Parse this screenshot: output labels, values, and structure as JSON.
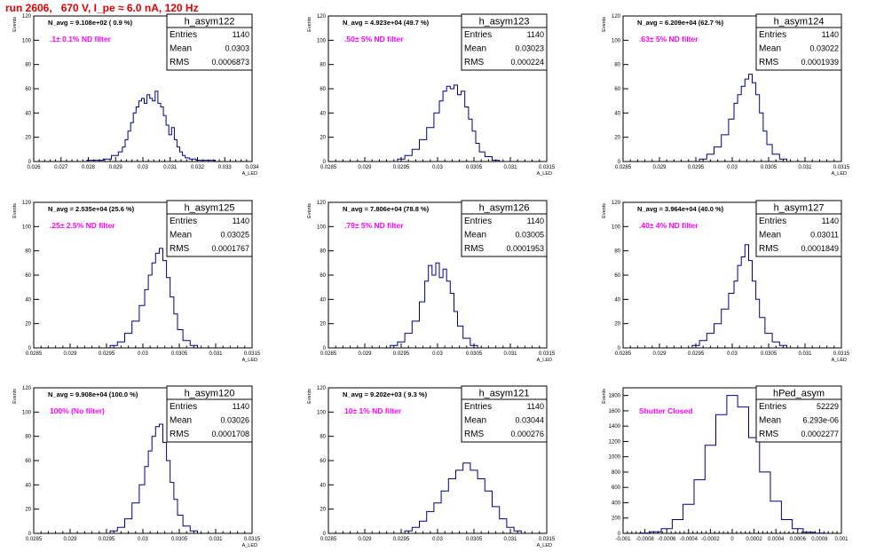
{
  "page": {
    "title": "run 2606,   670 V, I_pe ≈ 6.0 nA, 120 Hz"
  },
  "colors": {
    "histogram": "#00007f",
    "annotation": "#ff00ff",
    "title": "#e00000",
    "axis": "#000000"
  },
  "chart_data": [
    {
      "type": "histogram",
      "name": "h_asym122",
      "ylabel": "Events",
      "xlabel": "A_LED",
      "nav_label": "N_avg = 9.108e+02 ( 0.9 %)",
      "filter_label": ".1± 0.1% ND filter",
      "stats": {
        "entries": "1140",
        "mean": "0.0303",
        "rms": "0.0006873"
      },
      "xlim": [
        0.026,
        0.034
      ],
      "xticks": [
        "0.026",
        "0.027",
        "0.028",
        "0.029",
        "0.03",
        "0.031",
        "0.032",
        "0.033",
        "0.034"
      ],
      "ylim": [
        0,
        120
      ],
      "yticks": [
        "0",
        "20",
        "40",
        "60",
        "80",
        "100",
        "120"
      ],
      "bins_x": [
        0.0281,
        0.0284,
        0.0287,
        0.029,
        0.0292,
        0.0293,
        0.0294,
        0.0295,
        0.0296,
        0.0297,
        0.0298,
        0.0299,
        0.03,
        0.0301,
        0.0302,
        0.0303,
        0.0304,
        0.0305,
        0.0306,
        0.0307,
        0.0308,
        0.0309,
        0.031,
        0.0311,
        0.0312,
        0.0313,
        0.0314,
        0.0315,
        0.0316,
        0.0318,
        0.0321,
        0.0325
      ],
      "bins_y": [
        1,
        1,
        2,
        5,
        8,
        12,
        18,
        25,
        32,
        40,
        45,
        50,
        52,
        48,
        55,
        52,
        50,
        58,
        48,
        45,
        38,
        30,
        22,
        28,
        18,
        12,
        8,
        5,
        3,
        2,
        1,
        1
      ]
    },
    {
      "type": "histogram",
      "name": "h_asym123",
      "ylabel": "Events",
      "xlabel": "A_LED",
      "nav_label": "N_avg = 4.923e+04 (49.7 %)",
      "filter_label": ".50± 5% ND filter",
      "stats": {
        "entries": "1140",
        "mean": "0.03023",
        "rms": "0.000224"
      },
      "xlim": [
        0.0285,
        0.0315
      ],
      "xticks": [
        "0.0285",
        "0.029",
        "0.0295",
        "0.03",
        "0.0305",
        "0.031",
        "0.0315"
      ],
      "ylim": [
        0,
        120
      ],
      "yticks": [
        "0",
        "20",
        "40",
        "60",
        "80",
        "100",
        "120"
      ],
      "bins_x": [
        0.0295,
        0.0296,
        0.0297,
        0.0298,
        0.0299,
        0.03,
        0.03005,
        0.0301,
        0.03015,
        0.0302,
        0.03025,
        0.0303,
        0.03035,
        0.0304,
        0.03045,
        0.0305,
        0.03055,
        0.0306,
        0.0307,
        0.0308
      ],
      "bins_y": [
        2,
        5,
        10,
        18,
        28,
        40,
        50,
        58,
        62,
        60,
        63,
        55,
        58,
        45,
        35,
        25,
        15,
        8,
        4,
        1
      ]
    },
    {
      "type": "histogram",
      "name": "h_asym124",
      "ylabel": "Events",
      "xlabel": "A_LED",
      "nav_label": "N_avg = 6.209e+04 (62.7 %)",
      "filter_label": ".63± 5% ND filter",
      "stats": {
        "entries": "1140",
        "mean": "0.03022",
        "rms": "0.0001939"
      },
      "xlim": [
        0.0285,
        0.0315
      ],
      "xticks": [
        "0.0285",
        "0.029",
        "0.0295",
        "0.03",
        "0.0305",
        "0.031",
        "0.0315"
      ],
      "ylim": [
        0,
        120
      ],
      "yticks": [
        "0",
        "20",
        "40",
        "60",
        "80",
        "100",
        "120"
      ],
      "bins_x": [
        0.0296,
        0.0297,
        0.0298,
        0.0299,
        0.03,
        0.03005,
        0.0301,
        0.03015,
        0.0302,
        0.03025,
        0.0303,
        0.03035,
        0.0304,
        0.03045,
        0.0305,
        0.0306,
        0.0307
      ],
      "bins_y": [
        2,
        6,
        12,
        22,
        35,
        48,
        55,
        62,
        68,
        72,
        65,
        55,
        40,
        25,
        14,
        6,
        2
      ]
    },
    {
      "type": "histogram",
      "name": "h_asym125",
      "ylabel": "Events",
      "xlabel": "A_LED",
      "nav_label": "N_avg = 2.535e+04 (25.6 %)",
      "filter_label": ".25± 2.5% ND filter",
      "stats": {
        "entries": "1140",
        "mean": "0.03025",
        "rms": "0.0001767"
      },
      "xlim": [
        0.0285,
        0.0315
      ],
      "xticks": [
        "0.0285",
        "0.029",
        "0.0295",
        "0.03",
        "0.0305",
        "0.031",
        "0.0315"
      ],
      "ylim": [
        0,
        120
      ],
      "yticks": [
        "0",
        "20",
        "40",
        "60",
        "80",
        "100",
        "120"
      ],
      "bins_x": [
        0.0296,
        0.0297,
        0.0298,
        0.0299,
        0.03,
        0.03005,
        0.0301,
        0.03015,
        0.0302,
        0.03025,
        0.0303,
        0.03035,
        0.0304,
        0.03045,
        0.0305,
        0.0306,
        0.0307
      ],
      "bins_y": [
        2,
        5,
        12,
        22,
        35,
        48,
        60,
        70,
        78,
        82,
        72,
        58,
        42,
        28,
        15,
        6,
        2
      ]
    },
    {
      "type": "histogram",
      "name": "h_asym126",
      "ylabel": "Events",
      "xlabel": "A_LED",
      "nav_label": "N_avg = 7.806e+04 (78.8 %)",
      "filter_label": ".79± 5% ND filter",
      "stats": {
        "entries": "1140",
        "mean": "0.03005",
        "rms": "0.0001953"
      },
      "xlim": [
        0.0285,
        0.0315
      ],
      "xticks": [
        "0.0285",
        "0.029",
        "0.0295",
        "0.03",
        "0.0305",
        "0.031",
        "0.0315"
      ],
      "ylim": [
        0,
        120
      ],
      "yticks": [
        "0",
        "20",
        "40",
        "60",
        "80",
        "100",
        "120"
      ],
      "bins_x": [
        0.0294,
        0.0295,
        0.0296,
        0.0297,
        0.0298,
        0.02985,
        0.0299,
        0.02995,
        0.03,
        0.03005,
        0.0301,
        0.03015,
        0.0302,
        0.03025,
        0.0303,
        0.0304,
        0.0305
      ],
      "bins_y": [
        2,
        5,
        12,
        22,
        38,
        55,
        68,
        60,
        70,
        58,
        65,
        55,
        45,
        30,
        18,
        8,
        2
      ]
    },
    {
      "type": "histogram",
      "name": "h_asym127",
      "ylabel": "Events",
      "xlabel": "A_LED",
      "nav_label": "N_avg = 3.964e+04 (40.0 %)",
      "filter_label": ".40± 4% ND filter",
      "stats": {
        "entries": "1140",
        "mean": "0.03011",
        "rms": "0.0001849"
      },
      "xlim": [
        0.0285,
        0.0315
      ],
      "xticks": [
        "0.0285",
        "0.029",
        "0.0295",
        "0.03",
        "0.0305",
        "0.031",
        "0.0315"
      ],
      "ylim": [
        0,
        120
      ],
      "yticks": [
        "0",
        "20",
        "40",
        "60",
        "80",
        "100",
        "120"
      ],
      "bins_x": [
        0.0295,
        0.0296,
        0.0297,
        0.0298,
        0.0299,
        0.03,
        0.03005,
        0.0301,
        0.03015,
        0.0302,
        0.03025,
        0.0303,
        0.03035,
        0.0304,
        0.0305,
        0.0306,
        0.0307
      ],
      "bins_y": [
        2,
        6,
        12,
        20,
        32,
        45,
        55,
        68,
        75,
        85,
        72,
        55,
        40,
        25,
        12,
        5,
        2
      ]
    },
    {
      "type": "histogram",
      "name": "h_asym120",
      "ylabel": "Events",
      "xlabel": "A_LED",
      "nav_label": "N_avg = 9.908e+04 (100.0 %)",
      "filter_label": "100% (No filter)",
      "stats": {
        "entries": "1140",
        "mean": "0.03026",
        "rms": "0.0001708"
      },
      "xlim": [
        0.0285,
        0.0315
      ],
      "xticks": [
        "0.0285",
        "0.029",
        "0.0295",
        "0.03",
        "0.0305",
        "0.031",
        "0.0315"
      ],
      "ylim": [
        0,
        120
      ],
      "yticks": [
        "0",
        "20",
        "40",
        "60",
        "80",
        "100",
        "120"
      ],
      "bins_x": [
        0.0296,
        0.0297,
        0.0298,
        0.0299,
        0.03,
        0.03005,
        0.0301,
        0.03015,
        0.0302,
        0.03025,
        0.0303,
        0.03035,
        0.0304,
        0.03045,
        0.0305,
        0.0306,
        0.0307
      ],
      "bins_y": [
        2,
        5,
        12,
        25,
        40,
        55,
        68,
        80,
        88,
        90,
        75,
        60,
        42,
        28,
        15,
        6,
        2
      ]
    },
    {
      "type": "histogram",
      "name": "h_asym121",
      "ylabel": "Events",
      "xlabel": "A_LED",
      "nav_label": "N_avg = 9.202e+03 ( 9.3 %)",
      "filter_label": "10± 1% ND filter",
      "stats": {
        "entries": "1140",
        "mean": "0.03044",
        "rms": "0.000276"
      },
      "xlim": [
        0.0285,
        0.0315
      ],
      "xticks": [
        "0.0285",
        "0.029",
        "0.0295",
        "0.03",
        "0.0305",
        "0.031",
        "0.0315"
      ],
      "ylim": [
        0,
        120
      ],
      "yticks": [
        "0",
        "20",
        "40",
        "60",
        "80",
        "100",
        "120"
      ],
      "bins_x": [
        0.0296,
        0.0297,
        0.0298,
        0.0299,
        0.03,
        0.0301,
        0.0302,
        0.0303,
        0.0304,
        0.0305,
        0.0306,
        0.0307,
        0.0308,
        0.0309,
        0.031,
        0.0311
      ],
      "bins_y": [
        2,
        5,
        10,
        18,
        25,
        35,
        45,
        52,
        58,
        52,
        45,
        35,
        22,
        12,
        5,
        2
      ]
    },
    {
      "type": "histogram",
      "name": "hPed_asym",
      "ylabel": "Events",
      "xlabel": "",
      "nav_label": "",
      "filter_label": "Shutter Closed",
      "stats": {
        "entries": "52229",
        "mean": "6.293e-06",
        "rms": "0.0002277"
      },
      "xlim": [
        -0.001,
        0.001
      ],
      "xticks": [
        "-0.001",
        "-0.0008",
        "-0.0006",
        "-0.0004",
        "-0.0002",
        "0",
        "0.0002",
        "0.0004",
        "0.0006",
        "0.0008",
        "0.001"
      ],
      "ylim": [
        0,
        1900
      ],
      "yticks": [
        "0",
        "200",
        "400",
        "600",
        "800",
        "1000",
        "1200",
        "1400",
        "1600",
        "1800"
      ],
      "bins_x": [
        -0.0008,
        -0.0007,
        -0.0006,
        -0.0005,
        -0.0004,
        -0.0003,
        -0.0002,
        -0.0001,
        0,
        0.0001,
        0.0002,
        0.0003,
        0.0004,
        0.0005,
        0.0006,
        0.0007,
        0.0008
      ],
      "bins_y": [
        5,
        20,
        60,
        180,
        380,
        700,
        1150,
        1550,
        1800,
        1650,
        1250,
        800,
        420,
        180,
        60,
        15,
        3
      ]
    }
  ]
}
